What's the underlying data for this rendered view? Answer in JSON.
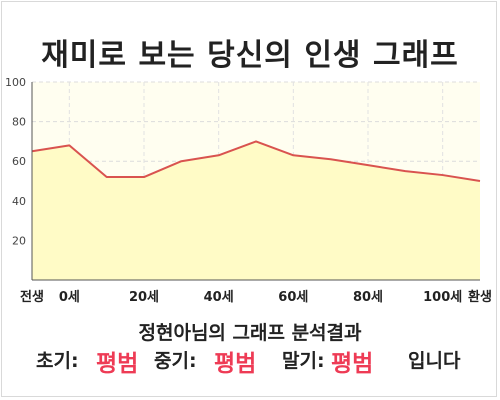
{
  "title": "재미로 보는 당신의 인생 그래프",
  "subtitle": "정현아님의 그래프 분석결과",
  "result": {
    "early_label": "초기:",
    "early_value": "평범",
    "mid_label": "중기:",
    "mid_value": "평범",
    "late_label": "말기:",
    "late_value": "평범",
    "ending": "입니다"
  },
  "colors": {
    "line": "#d9534f",
    "fill": "#fffbc6",
    "plot_bg": "#fffef0",
    "accent": "#ee3b55"
  },
  "chart_data": {
    "type": "area",
    "title": "재미로 보는 당신의 인생 그래프",
    "xlabel": "",
    "ylabel": "",
    "x": [
      -10,
      0,
      10,
      20,
      30,
      40,
      50,
      60,
      70,
      80,
      90,
      100,
      110
    ],
    "values": [
      65,
      68,
      52,
      52,
      60,
      63,
      70,
      63,
      61,
      58,
      55,
      53,
      50
    ],
    "x_ticks": [
      {
        "x": -10,
        "label": "전생"
      },
      {
        "x": 0,
        "label": "0세"
      },
      {
        "x": 20,
        "label": "20세"
      },
      {
        "x": 40,
        "label": "40세"
      },
      {
        "x": 60,
        "label": "60세"
      },
      {
        "x": 80,
        "label": "80세"
      },
      {
        "x": 100,
        "label": "100세"
      },
      {
        "x": 110,
        "label": "환생"
      }
    ],
    "y_ticks": [
      20,
      40,
      60,
      80,
      100
    ],
    "xlim": [
      -10,
      110
    ],
    "ylim": [
      0,
      100
    ],
    "grid": true,
    "legend": "none"
  }
}
